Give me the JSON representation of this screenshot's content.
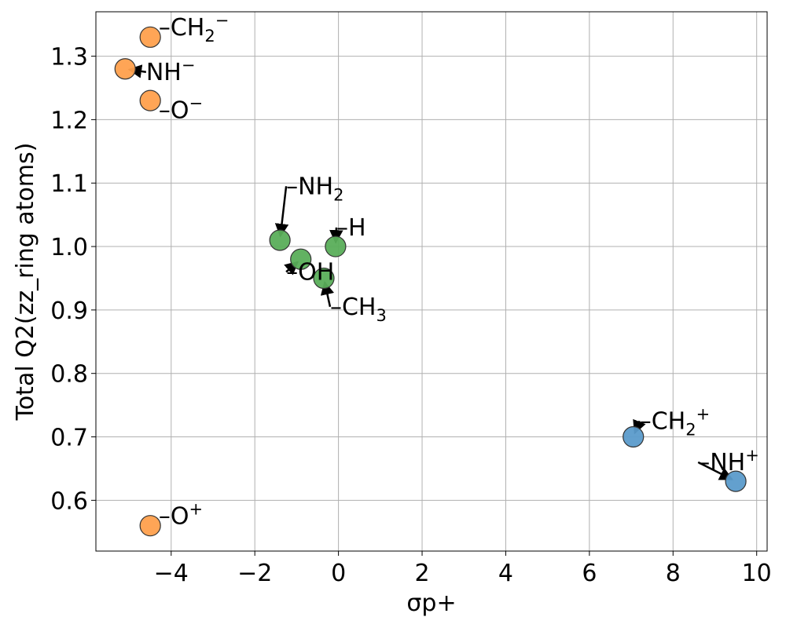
{
  "chart_data": {
    "type": "scatter",
    "title": "",
    "xlabel": "σp+",
    "ylabel": "Total Q2(zz_ring atoms)",
    "xlim": [
      -5.8,
      10.25
    ],
    "ylim": [
      0.52,
      1.37
    ],
    "xticks": [
      -4,
      -2,
      0,
      2,
      4,
      6,
      8,
      10
    ],
    "xtick_labels": [
      "−4",
      "−2",
      "0",
      "2",
      "4",
      "6",
      "8",
      "10"
    ],
    "yticks": [
      0.6,
      0.7,
      0.8,
      0.9,
      1.0,
      1.1,
      1.2,
      1.3
    ],
    "ytick_labels": [
      "0.6",
      "0.7",
      "0.8",
      "0.9",
      "1.0",
      "1.1",
      "1.2",
      "1.3"
    ],
    "grid": true,
    "legend": "none",
    "colors": {
      "anion": "#ffa04d",
      "neutral": "#5aae5a",
      "cation": "#5b9bcb"
    },
    "points": [
      {
        "group": "anion",
        "x": -4.5,
        "y": 1.33,
        "label": {
          "text": "–CH",
          "sub": "2",
          "sup": "−"
        },
        "label_at": [
          -4.3,
          1.345
        ]
      },
      {
        "group": "anion",
        "x": -5.1,
        "y": 1.28,
        "label": {
          "text": "NH",
          "sub": "",
          "sup": "−"
        },
        "label_at": [
          -4.6,
          1.275
        ]
      },
      {
        "group": "anion",
        "x": -4.5,
        "y": 1.23,
        "label": {
          "text": "–O",
          "sub": "",
          "sup": "−"
        },
        "label_at": [
          -4.3,
          1.215
        ]
      },
      {
        "group": "anion",
        "x": -4.5,
        "y": 0.56,
        "label": {
          "text": "–O",
          "sub": "",
          "sup": "+"
        },
        "label_at": [
          -4.3,
          0.575
        ]
      },
      {
        "group": "neutral",
        "x": -1.4,
        "y": 1.01,
        "label": {
          "text": "–NH",
          "sub": "2",
          "sup": ""
        },
        "label_at": [
          -1.25,
          1.095
        ]
      },
      {
        "group": "neutral",
        "x": -0.07,
        "y": 1.0,
        "label": {
          "text": "–H",
          "sub": "",
          "sup": ""
        },
        "label_at": [
          -0.05,
          1.03
        ]
      },
      {
        "group": "neutral",
        "x": -0.9,
        "y": 0.98,
        "label": {
          "text": "–OH",
          "sub": "",
          "sup": ""
        },
        "label_at": [
          -1.25,
          0.96
        ]
      },
      {
        "group": "neutral",
        "x": -0.35,
        "y": 0.95,
        "label": {
          "text": "–CH",
          "sub": "3",
          "sup": ""
        },
        "label_at": [
          -0.2,
          0.905
        ]
      },
      {
        "group": "cation",
        "x": 7.05,
        "y": 0.7,
        "label": {
          "text": "–CH",
          "sub": "2",
          "sup": "+"
        },
        "label_at": [
          7.2,
          0.725
        ]
      },
      {
        "group": "cation",
        "x": 9.5,
        "y": 0.63,
        "label": {
          "text": "–NH",
          "sub": "",
          "sup": "+"
        },
        "label_at": [
          8.6,
          0.66
        ]
      }
    ]
  }
}
